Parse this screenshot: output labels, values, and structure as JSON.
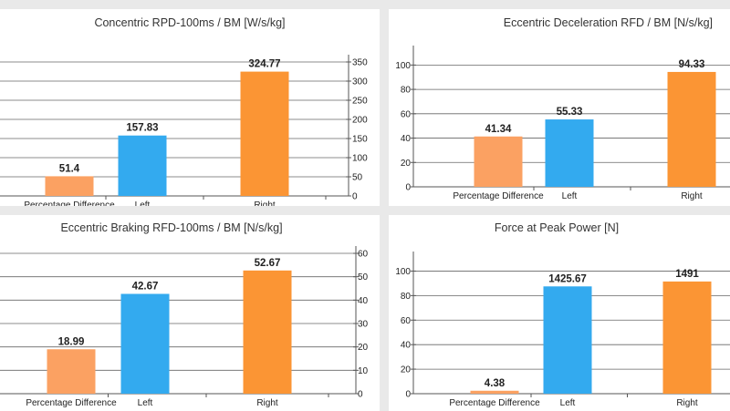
{
  "chart_data": [
    {
      "type": "bar",
      "title": "Concentric RPD-100ms / BM [W/s/kg]",
      "categories": [
        "Percentage Difference",
        "Left",
        "Right"
      ],
      "values": [
        51.4,
        157.83,
        324.77
      ],
      "value_labels": [
        "51.4",
        "157.83",
        "324.77"
      ],
      "colors": [
        "#fba162",
        "#33aaef",
        "#fb9534"
      ],
      "ylim": [
        0,
        350
      ],
      "yticks": [
        "0",
        "50",
        "100",
        "150",
        "200",
        "250",
        "300",
        "350"
      ],
      "ytick_values": [
        0,
        50,
        100,
        150,
        200,
        250,
        300,
        350
      ],
      "yaxis_side": "right",
      "grid": true
    },
    {
      "type": "bar",
      "title": "Eccentric Deceleration RFD / BM [N/s/kg]",
      "categories": [
        "Percentage Difference",
        "Left",
        "Right"
      ],
      "values": [
        41.34,
        55.33,
        94.33
      ],
      "value_labels": [
        "41.34",
        "55.33",
        "94.33"
      ],
      "colors": [
        "#fba162",
        "#33aaef",
        "#fb9534"
      ],
      "ylim": [
        0,
        110
      ],
      "yticks": [
        "0",
        "20",
        "40",
        "60",
        "80",
        "100"
      ],
      "ytick_values": [
        0,
        20,
        40,
        60,
        80,
        100
      ],
      "yaxis_side": "left",
      "grid": true
    },
    {
      "type": "bar",
      "title": "Eccentric Braking RFD-100ms / BM [N/s/kg]",
      "categories": [
        "Percentage Difference",
        "Left",
        "Right"
      ],
      "values": [
        18.99,
        42.67,
        52.67
      ],
      "value_labels": [
        "18.99",
        "42.67",
        "52.67"
      ],
      "colors": [
        "#fba162",
        "#33aaef",
        "#fb9534"
      ],
      "ylim": [
        0,
        60
      ],
      "yticks": [
        "0",
        "10",
        "20",
        "30",
        "40",
        "50",
        "60"
      ],
      "ytick_values": [
        0,
        10,
        20,
        30,
        40,
        50,
        60
      ],
      "yaxis_side": "right",
      "grid": true
    },
    {
      "type": "bar",
      "title": "Force at Peak Power [N]",
      "categories": [
        "Percentage Difference",
        "Left",
        "Right"
      ],
      "values": [
        4.38,
        1425.67,
        1491
      ],
      "value_labels": [
        "4.38",
        "1425.67",
        "1491"
      ],
      "colors": [
        "#fba162",
        "#33aaef",
        "#fb9534"
      ],
      "ylim": [
        0,
        110
      ],
      "yticks": [
        "0",
        "20",
        "40",
        "60",
        "80",
        "100"
      ],
      "ytick_values": [
        0,
        20,
        40,
        60,
        80,
        100
      ],
      "bar_display_fractions": [
        0.024,
        0.875,
        0.915
      ],
      "yaxis_side": "left",
      "grid": true
    }
  ]
}
